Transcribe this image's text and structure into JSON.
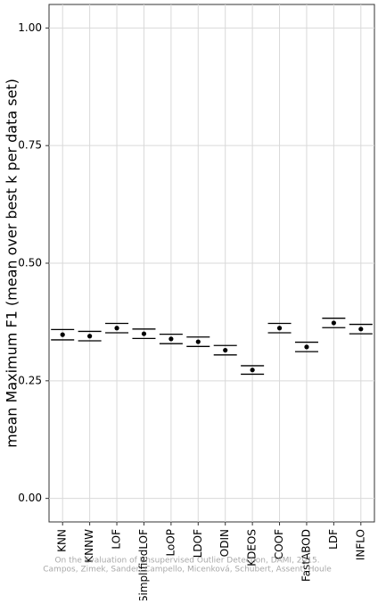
{
  "chart_data": {
    "type": "errorbar",
    "ylabel": "mean Maximum F1 (mean over best k per data set)",
    "categories": [
      "KNN",
      "KNNW",
      "LOF",
      "SimplifiedLOF",
      "LoOP",
      "LDOF",
      "ODIN",
      "KDEOS",
      "COOF",
      "FastABOD",
      "LDF",
      "INFLO"
    ],
    "values": [
      0.348,
      0.345,
      0.362,
      0.35,
      0.339,
      0.333,
      0.315,
      0.273,
      0.362,
      0.322,
      0.373,
      0.36
    ],
    "errors": [
      0.011,
      0.01,
      0.01,
      0.01,
      0.01,
      0.01,
      0.01,
      0.009,
      0.01,
      0.01,
      0.01,
      0.01
    ],
    "color": "#000000",
    "ylim": [
      -0.05,
      1.05
    ],
    "yticks": [
      {
        "value": 0,
        "label": "0.00"
      },
      {
        "value": 0.25,
        "label": "0.25"
      },
      {
        "value": 0.5,
        "label": "0.50"
      },
      {
        "value": 0.75,
        "label": "0.75"
      },
      {
        "value": 1,
        "label": "1.00"
      }
    ],
    "grid": true,
    "annotations": [
      "On the Evaluation of Unsupervised Outlier Detection, DAMI, 2015.",
      "Campos, Zimek, Sander, Campello, Micenková, Schubert, Assent, Houle"
    ]
  }
}
